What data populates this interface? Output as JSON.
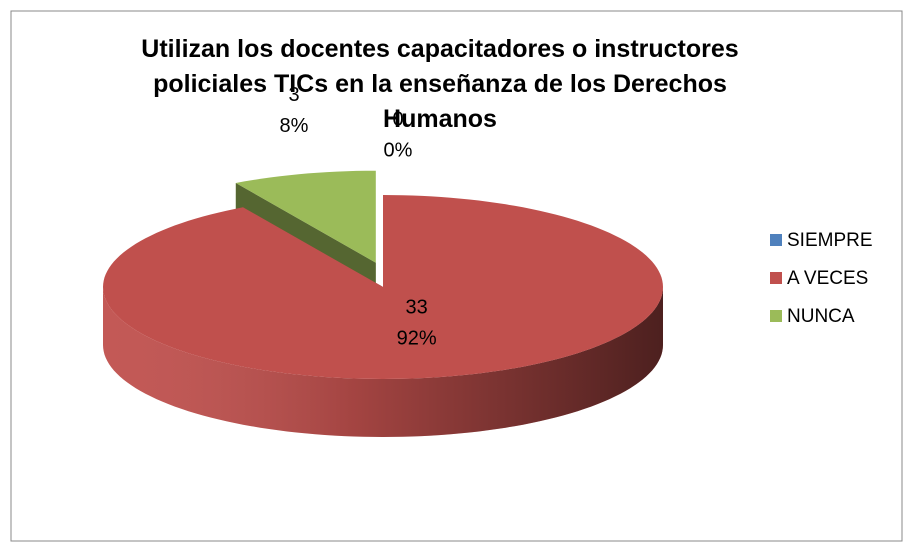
{
  "chart_data": {
    "type": "pie",
    "title": "Utilizan los docentes capacitadores o instructores policiales TICs en la enseñanza de los Derechos Humanos",
    "categories": [
      "SIEMPRE",
      "A VECES",
      "NUNCA"
    ],
    "values": [
      0,
      33,
      3
    ],
    "percent_labels": [
      "0%",
      "92%",
      "8%"
    ],
    "colors": [
      "#4f81bd",
      "#c0504d",
      "#9bbb59"
    ],
    "legend": "right"
  }
}
